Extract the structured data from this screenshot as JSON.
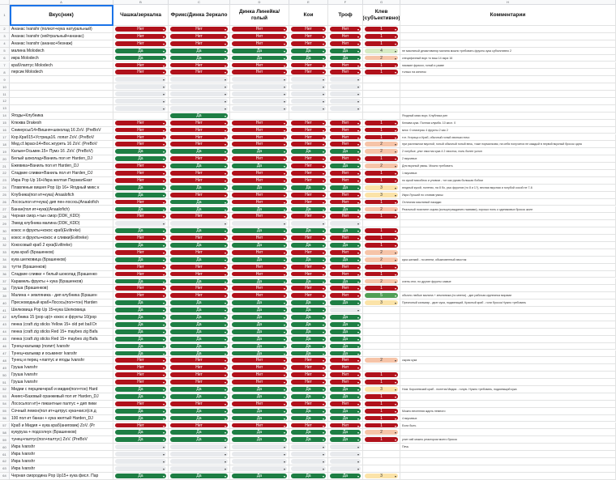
{
  "columns": {
    "letters": [
      "A",
      "B",
      "C",
      "D",
      "E",
      "F",
      "G",
      "H"
    ],
    "headers": [
      "Вкус(ник)",
      "Чашка/зеркалка",
      "Фрикс/Динка Зеркало",
      "Динка Линейка/голый",
      "Кои",
      "Троф",
      "Клев (субъективно)",
      "Комментарии"
    ]
  },
  "labels": {
    "yes": "Да",
    "no": "Нет",
    "arrow": "▾"
  },
  "colors": {
    "yes": "#1e7e44",
    "no": "#b0111b",
    "empty": "#e8eaed",
    "active_border": "#1a73e8"
  },
  "rows": [
    {
      "n": "2",
      "name": "Ананас Ivanshr (полиэт+кукa натуральный)",
      "v": [
        "N",
        "N",
        "N",
        "N",
        "N"
      ],
      "r": "1",
      "c": ""
    },
    {
      "n": "3",
      "name": "Ананас Ivanshr (нейтральный+ананас)",
      "v": [
        "N",
        "N",
        "N",
        "N",
        "N"
      ],
      "r": "1",
      "c": ""
    },
    {
      "n": "4",
      "name": "Ананас Ivanshr (ананас+безнаж)",
      "v": [
        "N",
        "N",
        "N",
        "N",
        "N"
      ],
      "r": "1",
      "c": ""
    },
    {
      "n": "5",
      "name": "малина Molodech",
      "v": [
        "Y",
        "Y",
        "Y",
        "Y",
        "Y"
      ],
      "r": "4",
      "c": "не масляный дезактиватор малина можно требовать фрукты кукa субъективно 2"
    },
    {
      "n": "6",
      "name": "икра Molodech",
      "v": [
        "Y",
        "Y",
        "Y",
        "Y",
        "Y"
      ],
      "r": "2",
      "c": "специфичный вкус то ваш 14 икра 16"
    },
    {
      "n": "7",
      "name": "краб/лаптус Molodech",
      "v": [
        "N",
        "N",
        "N",
        "N",
        "N"
      ],
      "r": "1",
      "c": "никакие фрикси, голый и разве"
    },
    {
      "n": "8",
      "name": "персик Molodech",
      "v": [
        "N",
        "N",
        "N",
        "N",
        "N"
      ],
      "r": "1",
      "c": "только на кипяток"
    },
    {
      "n": "9",
      "name": "",
      "v": [
        "E",
        "E",
        "E",
        "E",
        "E"
      ],
      "r": "",
      "c": ""
    },
    {
      "n": "10",
      "name": "",
      "v": [
        "E",
        "E",
        "E",
        "E",
        "E"
      ],
      "r": "",
      "c": ""
    },
    {
      "n": "11",
      "name": "",
      "v": [
        "E",
        "E",
        "E",
        "E",
        "E"
      ],
      "r": "",
      "c": ""
    },
    {
      "n": "12",
      "name": "",
      "v": [
        "E",
        "E",
        "E",
        "E",
        "E"
      ],
      "r": "",
      "c": ""
    },
    {
      "n": "13",
      "name": "",
      "v": [
        "E",
        "E",
        "E",
        "E",
        "E"
      ],
      "r": "",
      "c": ""
    },
    {
      "n": "14",
      "name": "Ягоды+Клубника",
      "v": [
        "",
        "Y",
        "",
        "",
        ""
      ],
      "r": "",
      "c": "Ягодный микс вкус. Клубника рин"
    },
    {
      "n": "15",
      "name": "Клюква Drakesh",
      "v": [
        "N",
        "N",
        "N",
        "N",
        "N"
      ],
      "r": "1",
      "c": "Клюква кукa. Полная клумба. 10 кисл. 0"
    },
    {
      "n": "16",
      "name": "Сникерсы/14+Вишня+шоколад 16 ZoV. (PreBoV",
      "v": [
        "N",
        "N",
        "N",
        "N",
        "N"
      ],
      "r": "1",
      "c": "мног. 0 сникерсы 4 фрукты 2 как 2"
    },
    {
      "n": "17",
      "name": "Кор.Краб15+Устрица16. лопат ZoV. (PreBoV",
      "v": [
        "N",
        "N",
        "N",
        "N",
        "N"
      ],
      "r": "1",
      "c": "тот. Устрица и Краб, обычный голый хвоньки ничо"
    },
    {
      "n": "18",
      "name": "Мед.сf.Iкрасн14+Вос.жгуреть 16 ZoV. (PreBoV",
      "v": [
        "N",
        "N",
        "N",
        "N",
        "N"
      ],
      "r": "2",
      "c": "при расплыном вкусной, голый обычный голый весь, тоже нормальная, на себя получится не каждый в первой вкусный бросок одна"
    },
    {
      "n": "19",
      "name": "Кальм+Осьмин.15+ Пумэ 16 .ZoV. (PreBoV)",
      "v": [
        "Y",
        "Y",
        "Y",
        "Y",
        "Y"
      ],
      "r": "2",
      "c": "2 голубые, ульт хвостик кукa 4 2 хвостья, ноль более уклон"
    },
    {
      "n": "20",
      "name": "Белый шоколад+Ваниль пол ит Harden_DJ",
      "v": [
        "Y",
        "N",
        "N",
        "N",
        "N"
      ],
      "r": "1",
      "c": "2 вкусивых"
    },
    {
      "n": "21",
      "name": "Ежевика+Ваниль пол ит Harden_DJ",
      "v": [
        "N",
        "Y",
        "Y",
        "N",
        "Y"
      ],
      "r": "2",
      "c": "Для вкусный умиш. Можно требовать"
    },
    {
      "n": "22",
      "name": "Сладкие сливки+Ваниль пол ит Harden_DJ",
      "v": [
        "N",
        "N",
        "N",
        "N",
        "N"
      ],
      "r": "1",
      "c": "1 вкусивых"
    },
    {
      "n": "23",
      "name": "Икра Pop Up 16+Икра желтая ПерзиатЕкат",
      "v": [
        "N",
        "N",
        "N",
        "N",
        "N"
      ],
      "r": "1",
      "c": "по кукой мясоблок и уловом - тот как рукам большая бобом"
    },
    {
      "n": "24",
      "name": "Плавленые вишня Pop Up 16+ Ягодный микс к",
      "v": [
        "Y",
        "Y",
        "Y",
        "Y",
        "Y"
      ],
      "r": "3",
      "c": "ягодный кукой, полетик, на 8 бо, рыс фруктов (то 8 и 1?), весная вкусная и голубой сосой не 7-6"
    },
    {
      "n": "25",
      "name": "Клубника(пол ит+кукa) Anaalofich",
      "v": [
        "Y",
        "N",
        "N",
        "N",
        "N"
      ],
      "r": "3",
      "c": "Икра Лучший по словам умиш"
    },
    {
      "n": "26",
      "name": "Лососьпол ит+кукa) дип пен-лосось(Anaalofich",
      "v": [
        "N",
        "Y",
        "N",
        "N",
        "N"
      ],
      "r": "1",
      "c": "Отличная масляный накидки"
    },
    {
      "n": "27",
      "name": "Банан(пол ит+кукa)(Anaalofich)",
      "v": [
        "Y",
        "Y",
        "Y",
        "Y",
        "Y"
      ],
      "r": "2",
      "c": "Реальный поистине сырая (кольцегражданин-тыквами), хорошо ноль к одинаковых бросок жолп"
    },
    {
      "n": "28",
      "name": "Черная смор.+тын смор (DDK_KDD)",
      "v": [
        "N",
        "N",
        "N",
        "N",
        "N"
      ],
      "r": "1",
      "c": ""
    },
    {
      "n": "29",
      "name": "Ээвод клубника малина (DDK_KDD)",
      "v": [
        "E",
        "E",
        "E",
        "E",
        "E"
      ],
      "r": "",
      "c": ""
    },
    {
      "n": "30",
      "name": "кокос и фрукты+кокос краб(Eviltrekе)",
      "v": [
        "Y",
        "Y",
        "Y",
        "Y",
        "Y"
      ],
      "r": "1",
      "c": ""
    },
    {
      "n": "31",
      "name": "кокос и фрукты+кокос и сливки(Eviltrekе)",
      "v": [
        "N",
        "N",
        "N",
        "N",
        "N"
      ],
      "r": "1",
      "c": ""
    },
    {
      "n": "32",
      "name": "Кокосовый краб 2 кукa(Eviltrekе)",
      "v": [
        "Y",
        "Y",
        "Y",
        "Y",
        "Y"
      ],
      "r": "1",
      "c": ""
    },
    {
      "n": "33",
      "name": "кукa краб (Брашенков)",
      "v": [
        "N",
        "N",
        "N",
        "N",
        "N"
      ],
      "r": "2",
      "c": ""
    },
    {
      "n": "34",
      "name": "кукa шелковица (Брашенков)",
      "v": [
        "Y",
        "Y",
        "Y",
        "Y",
        "Y"
      ],
      "r": "2",
      "c": "кукa шелкий - по мнени, обыкновенный хвостик"
    },
    {
      "n": "35",
      "name": "тутти (Брашенков)",
      "v": [
        "N",
        "N",
        "N",
        "N",
        "N"
      ],
      "r": "1",
      "c": ""
    },
    {
      "n": "36",
      "name": "Сладкие сливки + белый шоколад (Брашенко",
      "v": [
        "N",
        "N",
        "N",
        "N",
        "N"
      ],
      "r": "1",
      "c": ""
    },
    {
      "n": "37",
      "name": "Карамель фрукты + кукa (Брашенков)",
      "v": [
        "Y",
        "Y",
        "Y",
        "Y",
        "Y"
      ],
      "r": "2",
      "c": "очень итог, по другие фрукты самые"
    },
    {
      "n": "38",
      "name": "Грушa (Брашенков)",
      "v": [
        "N",
        "N",
        "N",
        "N",
        "N"
      ],
      "r": "1",
      "c": ""
    },
    {
      "n": "39",
      "name": "Малина + земляника - дип клубника (Брашен",
      "v": [
        "N",
        "N",
        "N",
        "N",
        "N"
      ],
      "r": "5",
      "c": "обычно любые малина + земляника (по мнени) - дип рабочая крупнинка мирами"
    },
    {
      "n": "40",
      "name": "Пресноводный краб+Лосось(пол+тон) Harden",
      "v": [
        "Y",
        "Y",
        "Y",
        "Y",
        "Y"
      ],
      "r": "3",
      "c": "Пресноный кальмар - диат кукa, подкипящий, Красный краб - голи бросок Нужно требовать"
    },
    {
      "n": "41",
      "name": "Шелковица Pop Up 15+кукa Шелковица",
      "v": [
        "Y",
        "Y",
        "Y",
        "Y",
        "E"
      ],
      "r": "",
      "c": ""
    },
    {
      "n": "42",
      "name": "клубника 15 (pop up)+ кокос и фрукты 10(pop",
      "v": [
        "Y",
        "Y",
        "Y",
        "Y",
        "Y"
      ],
      "r": "",
      "c": ""
    },
    {
      "n": "43",
      "name": "пенка (craft zig sticks Yellow 15+ old pet ball Dr",
      "v": [
        "Y",
        "Y",
        "Y",
        "Y",
        "Y"
      ],
      "r": "",
      "c": ""
    },
    {
      "n": "44",
      "name": "пенка (craft zig sticks Red 15+ maybes zig Bafa",
      "v": [
        "Y",
        "Y",
        "Y",
        "Y",
        "Y"
      ],
      "r": "",
      "c": ""
    },
    {
      "n": "45",
      "name": "пенка (craft zig sticks Red 15+ maybes zig Bafa",
      "v": [
        "Y",
        "Y",
        "Y",
        "Y",
        "Y"
      ],
      "r": "",
      "c": ""
    },
    {
      "n": "46",
      "name": "Тунец+кальмар (полит) Ivanshr",
      "v": [
        "Y",
        "Y",
        "Y",
        "Y",
        "Y"
      ],
      "r": "",
      "c": ""
    },
    {
      "n": "47",
      "name": "Тунец+кальмар и осьминог Ivanshr",
      "v": [
        "Y",
        "Y",
        "Y",
        "Y",
        "Y"
      ],
      "r": "",
      "c": ""
    },
    {
      "n": "48",
      "name": "Тунец и перец +лаптус и ягоды Ivanshr",
      "v": [
        "N",
        "N",
        "N",
        "N",
        "N"
      ],
      "r": "2",
      "c": "сырая кукa"
    },
    {
      "n": "49",
      "name": "Грушa Ivanshr",
      "v": [
        "N",
        "N",
        "N",
        "N",
        "N"
      ],
      "r": "",
      "c": ""
    },
    {
      "n": "50",
      "name": "Грушa Ivanshr",
      "v": [
        "N",
        "N",
        "N",
        "N",
        "N"
      ],
      "r": "1",
      "c": ""
    },
    {
      "n": "51",
      "name": "Грушa Ivanshr",
      "v": [
        "N",
        "N",
        "N",
        "N",
        "N"
      ],
      "r": "1",
      "c": ""
    },
    {
      "n": "52",
      "name": "Мидии с перцем+краб и мидии(пол+тон) Hard",
      "v": [
        "Y",
        "Y",
        "Y",
        "Y",
        "Y"
      ],
      "r": "3",
      "c": "Ном. Королевский краб - полетик Мидия - голую. Нужно требовать, подкипящий кукa"
    },
    {
      "n": "53",
      "name": "Аниес+Базовый оранжевый пол ит Harden_DJ",
      "v": [
        "Y",
        "Y",
        "Y",
        "Y",
        "Y"
      ],
      "r": "1",
      "c": ""
    },
    {
      "n": "54",
      "name": "Лососьпол ит)+ пикантные палтус + дип пики",
      "v": [
        "N",
        "N",
        "N",
        "N",
        "N"
      ],
      "r": "1",
      "c": ""
    },
    {
      "n": "55",
      "name": "Сочный лемон(пол ит+цитрус кукa+кисл(сп.д",
      "v": [
        "Y",
        "Y",
        "Y",
        "Y",
        "Y"
      ],
      "r": "1",
      "c": "Можно весенняя ждать немного"
    },
    {
      "n": "56",
      "name": "100 пол ит банан + кукa желтый Harden_DJ",
      "v": [
        "Y",
        "Y",
        "Y",
        "Y",
        "Y"
      ],
      "r": "1",
      "c": "4 вкусивых"
    },
    {
      "n": "57",
      "name": "Краб и Мидия + кукa краб(аниговик) ZoV. (Pr",
      "v": [
        "N",
        "N",
        "N",
        "N",
        "N"
      ],
      "r": "1",
      "c": "Если быть"
    },
    {
      "n": "58",
      "name": "кукурузa + подсолнух (Брашенков)",
      "v": [
        "Y",
        "Y",
        "Y",
        "Y",
        "Y"
      ],
      "r": "2",
      "c": ""
    },
    {
      "n": "59",
      "name": "тунец+палтус(пол+палтус) ZoV. (PreBoV",
      "v": [
        "Y",
        "Y",
        "Y",
        "Y",
        "Y"
      ],
      "r": "1",
      "c": "улит иэй можно реактором моего бросок"
    },
    {
      "n": "60",
      "name": "Икра Ivanshr",
      "v": [
        "E",
        "E",
        "E",
        "E",
        "E"
      ],
      "r": "",
      "c": "Печь"
    },
    {
      "n": "61",
      "name": "Икра Ivanshr",
      "v": [
        "E",
        "E",
        "E",
        "E",
        "E"
      ],
      "r": "",
      "c": ""
    },
    {
      "n": "62",
      "name": "Икра Ivanshr",
      "v": [
        "E",
        "E",
        "E",
        "E",
        "E"
      ],
      "r": "",
      "c": ""
    },
    {
      "n": "63",
      "name": "Икра Ivanshr",
      "v": [
        "E",
        "E",
        "E",
        "E",
        "E"
      ],
      "r": "",
      "c": ""
    },
    {
      "n": "64",
      "name": "Черная смородина Pop Up15+ кукa фисл. Пар",
      "v": [
        "Y",
        "Y",
        "Y",
        "Y",
        "Y"
      ],
      "r": "3",
      "c": ""
    },
    {
      "n": "65",
      "name": "",
      "v": [
        "E",
        "E",
        "E",
        "E",
        "E"
      ],
      "r": "",
      "c": ""
    }
  ]
}
